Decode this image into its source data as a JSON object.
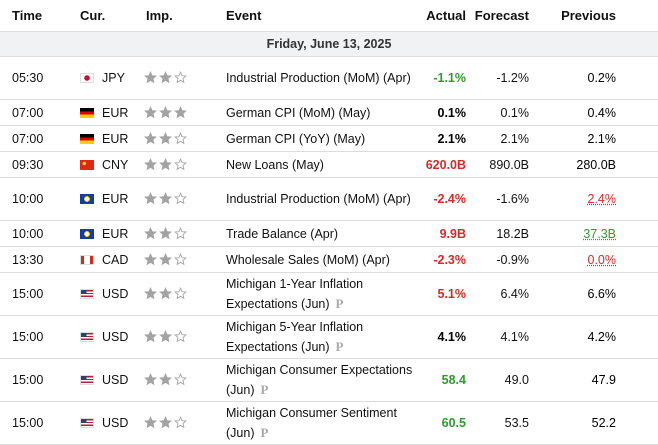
{
  "header": [
    "Time",
    "Cur.",
    "Imp.",
    "Event",
    "Actual",
    "Forecast",
    "Previous"
  ],
  "date": "Friday, June 13, 2025",
  "rows": [
    {
      "time": "05:30",
      "currency": "JPY",
      "importance": 2,
      "event": "Industrial Production (MoM) (Apr)",
      "actual": "-1.1%",
      "actual_color": "#2f9a2f",
      "forecast": "-1.2%",
      "previous": "0.2%",
      "previous_color": "#000000"
    },
    {
      "time": "07:00",
      "currency": "EUR",
      "importance": 3,
      "event": "German CPI (MoM) (May)",
      "actual": "0.1%",
      "actual_color": "#000000",
      "forecast": "0.1%",
      "previous": "0.4%",
      "previous_color": "#000000"
    },
    {
      "time": "07:00",
      "currency": "EUR",
      "importance": 2,
      "event": "German CPI (YoY) (May)",
      "actual": "2.1%",
      "actual_color": "#000000",
      "forecast": "2.1%",
      "previous": "2.1%",
      "previous_color": "#000000"
    },
    {
      "time": "09:30",
      "currency": "CNY",
      "importance": 2,
      "event": "New Loans (May)",
      "actual": "620.0B",
      "actual_color": "#d42a2a",
      "forecast": "890.0B",
      "previous": "280.0B",
      "previous_color": "#000000"
    },
    {
      "time": "10:00",
      "currency": "EUR",
      "importance": 2,
      "event": "Industrial Production (MoM) (Apr)",
      "actual": "-2.4%",
      "actual_color": "#d42a2a",
      "forecast": "-1.6%",
      "previous": "2.4%",
      "previous_color": "#d42a2a",
      "previous_revised": true
    },
    {
      "time": "10:00",
      "currency": "EUR",
      "importance": 2,
      "event": "Trade Balance (Apr)",
      "actual": "9.9B",
      "actual_color": "#d42a2a",
      "forecast": "18.2B",
      "previous": "37.3B",
      "previous_color": "#2f9a2f",
      "previous_revised": true
    },
    {
      "time": "13:30",
      "currency": "CAD",
      "importance": 2,
      "event": "Wholesale Sales (MoM) (Apr)",
      "actual": "-2.3%",
      "actual_color": "#d42a2a",
      "forecast": "-0.9%",
      "previous": "0.0%",
      "previous_color": "#d42a2a",
      "previous_revised": true
    },
    {
      "time": "15:00",
      "currency": "USD",
      "importance": 2,
      "event": "Michigan 1-Year Inflation Expectations (Jun)",
      "tag": "P",
      "actual": "5.1%",
      "actual_color": "#d42a2a",
      "forecast": "6.4%",
      "previous": "6.6%",
      "previous_color": "#000000"
    },
    {
      "time": "15:00",
      "currency": "USD",
      "importance": 2,
      "event": "Michigan 5-Year Inflation Expectations (Jun)",
      "tag": "P",
      "actual": "4.1%",
      "actual_color": "#000000",
      "forecast": "4.1%",
      "previous": "4.2%",
      "previous_color": "#000000"
    },
    {
      "time": "15:00",
      "currency": "USD",
      "importance": 2,
      "event": "Michigan Consumer Expectations (Jun)",
      "tag": "P",
      "actual": "58.4",
      "actual_color": "#2f9a2f",
      "forecast": "49.0",
      "previous": "47.9",
      "previous_color": "#000000"
    },
    {
      "time": "15:00",
      "currency": "USD",
      "importance": 2,
      "event": "Michigan Consumer Sentiment (Jun)",
      "tag": "P",
      "actual": "60.5",
      "actual_color": "#2f9a2f",
      "forecast": "53.5",
      "previous": "52.2",
      "previous_color": "#000000"
    }
  ]
}
